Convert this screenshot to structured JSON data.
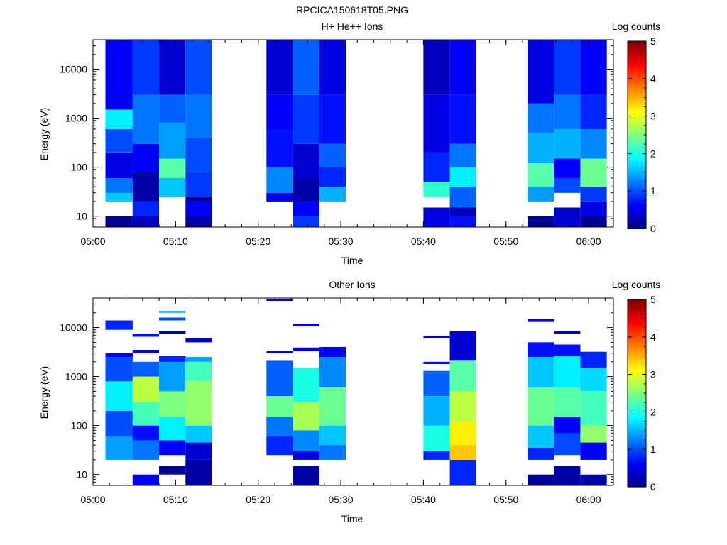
{
  "figure": {
    "title": "RPCICA150618T05.PNG"
  },
  "colorscale": [
    "#00007f",
    "#0000ff",
    "#007fff",
    "#00ffff",
    "#7fff7f",
    "#ffff00",
    "#ff7f00",
    "#ff0000",
    "#7f0000"
  ],
  "chart_data": [
    {
      "type": "heatmap",
      "title": "H+ He++ Ions",
      "xlabel": "Time",
      "ylabel": "Energy (eV)",
      "y_scale": "log",
      "ylim": [
        6,
        40000
      ],
      "xlim": [
        "05:00",
        "06:03"
      ],
      "x_ticks": [
        "05:00",
        "05:10",
        "05:20",
        "05:30",
        "05:40",
        "05:50",
        "06:00"
      ],
      "y_ticks": [
        "10",
        "100",
        "1000",
        "10000"
      ],
      "colorbar": {
        "label": "Log counts",
        "min": 0,
        "max": 5,
        "ticks": [
          "0",
          "1",
          "2",
          "3",
          "4",
          "5"
        ]
      },
      "columns": [
        {
          "start": "05:01.5",
          "end": "05:04.8",
          "bands": [
            [
              6,
              10,
              0.1
            ],
            [
              10,
              20,
              null
            ],
            [
              20,
              30,
              1.6
            ],
            [
              30,
              60,
              1.2
            ],
            [
              60,
              200,
              0.5
            ],
            [
              200,
              600,
              1.0
            ],
            [
              600,
              1500,
              1.8
            ],
            [
              1500,
              40000,
              0.6
            ]
          ]
        },
        {
          "start": "05:04.8",
          "end": "05:08.0",
          "bands": [
            [
              6,
              10,
              0.3
            ],
            [
              10,
              20,
              0.8
            ],
            [
              20,
              80,
              0.2
            ],
            [
              80,
              300,
              0.6
            ],
            [
              300,
              3000,
              1.2
            ],
            [
              3000,
              40000,
              0.9
            ]
          ]
        },
        {
          "start": "05:08.0",
          "end": "05:11.2",
          "bands": [
            [
              6,
              25,
              null
            ],
            [
              25,
              60,
              1.6
            ],
            [
              60,
              150,
              2.3
            ],
            [
              150,
              800,
              1.4
            ],
            [
              800,
              3000,
              1.1
            ],
            [
              3000,
              40000,
              0.4
            ]
          ]
        },
        {
          "start": "05:11.2",
          "end": "05:14.4",
          "bands": [
            [
              6,
              10,
              0.2
            ],
            [
              10,
              20,
              0.6
            ],
            [
              20,
              25,
              0.1
            ],
            [
              25,
              80,
              0.9
            ],
            [
              80,
              400,
              1.0
            ],
            [
              400,
              3000,
              1.2
            ],
            [
              3000,
              40000,
              1.0
            ]
          ]
        },
        {
          "start": "05:21.0",
          "end": "05:24.2",
          "bands": [
            [
              20,
              30,
              0.5
            ],
            [
              30,
              100,
              1.3
            ],
            [
              100,
              600,
              0.7
            ],
            [
              600,
              3000,
              0.6
            ],
            [
              3000,
              40000,
              0.4
            ]
          ]
        },
        {
          "start": "05:24.2",
          "end": "05:27.4",
          "bands": [
            [
              6,
              10,
              0.9
            ],
            [
              10,
              20,
              0.6
            ],
            [
              20,
              60,
              0.2
            ],
            [
              60,
              300,
              0.4
            ],
            [
              300,
              3000,
              0.9
            ],
            [
              3000,
              40000,
              1.1
            ]
          ]
        },
        {
          "start": "05:27.4",
          "end": "05:30.6",
          "bands": [
            [
              20,
              40,
              1.5
            ],
            [
              40,
              100,
              0.8
            ],
            [
              100,
              300,
              1.1
            ],
            [
              300,
              3000,
              0.7
            ],
            [
              3000,
              40000,
              0.5
            ]
          ]
        },
        {
          "start": "05:40.0",
          "end": "05:43.2",
          "bands": [
            [
              6,
              15,
              0.5
            ],
            [
              15,
              25,
              null
            ],
            [
              25,
              50,
              2.1
            ],
            [
              50,
              200,
              0.8
            ],
            [
              200,
              3000,
              0.5
            ],
            [
              3000,
              40000,
              0.3
            ]
          ]
        },
        {
          "start": "05:43.2",
          "end": "05:46.4",
          "bands": [
            [
              6,
              10,
              0.7
            ],
            [
              10,
              15,
              0.3
            ],
            [
              15,
              40,
              1.1
            ],
            [
              40,
              100,
              1.8
            ],
            [
              100,
              300,
              1.2
            ],
            [
              300,
              3000,
              0.7
            ],
            [
              3000,
              40000,
              0.6
            ]
          ]
        },
        {
          "start": "05:52.6",
          "end": "05:55.8",
          "bands": [
            [
              6,
              10,
              0.1
            ],
            [
              10,
              20,
              null
            ],
            [
              20,
              40,
              1.4
            ],
            [
              40,
              120,
              2.3
            ],
            [
              120,
              500,
              1.5
            ],
            [
              500,
              2000,
              1.2
            ],
            [
              2000,
              40000,
              0.5
            ]
          ]
        },
        {
          "start": "05:55.8",
          "end": "05:59.0",
          "bands": [
            [
              6,
              15,
              0.4
            ],
            [
              15,
              30,
              null
            ],
            [
              30,
              60,
              1.0
            ],
            [
              60,
              150,
              0.6
            ],
            [
              150,
              600,
              1.5
            ],
            [
              600,
              3000,
              1.2
            ],
            [
              3000,
              40000,
              0.9
            ]
          ]
        },
        {
          "start": "05:59.0",
          "end": "06:02.2",
          "bands": [
            [
              6,
              10,
              0.1
            ],
            [
              10,
              20,
              0.5
            ],
            [
              20,
              40,
              0.9
            ],
            [
              40,
              150,
              2.4
            ],
            [
              150,
              600,
              1.3
            ],
            [
              600,
              3000,
              0.8
            ],
            [
              3000,
              40000,
              0.6
            ]
          ]
        }
      ]
    },
    {
      "type": "heatmap",
      "title": "Other Ions",
      "xlabel": "Time",
      "ylabel": "Energy (eV)",
      "y_scale": "log",
      "ylim": [
        6,
        40000
      ],
      "xlim": [
        "05:00",
        "06:03"
      ],
      "x_ticks": [
        "05:00",
        "05:10",
        "05:20",
        "05:30",
        "05:40",
        "05:50",
        "06:00"
      ],
      "y_ticks": [
        "10",
        "100",
        "1000",
        "10000"
      ],
      "colorbar": {
        "label": "Log counts",
        "min": 0,
        "max": 5,
        "ticks": [
          "0",
          "1",
          "2",
          "3",
          "4",
          "5"
        ]
      },
      "columns": [
        {
          "start": "05:01.5",
          "end": "05:04.8",
          "bands": [
            [
              20,
              60,
              1.4
            ],
            [
              60,
              200,
              1.0
            ],
            [
              200,
              800,
              1.8
            ],
            [
              800,
              2500,
              1.0
            ],
            [
              2500,
              3000,
              0.6
            ],
            [
              3000,
              9000,
              null
            ],
            [
              9000,
              14000,
              0.8
            ]
          ]
        },
        {
          "start": "05:04.8",
          "end": "05:08.0",
          "bands": [
            [
              6,
              10,
              0.6
            ],
            [
              10,
              20,
              null
            ],
            [
              20,
              50,
              1.2
            ],
            [
              50,
              100,
              0.7
            ],
            [
              100,
              300,
              2.2
            ],
            [
              300,
              1000,
              2.8
            ],
            [
              1000,
              2000,
              1.1
            ],
            [
              3000,
              3500,
              0.6
            ],
            [
              6500,
              7500,
              0.7
            ]
          ]
        },
        {
          "start": "05:08.0",
          "end": "05:11.2",
          "bands": [
            [
              10,
              15,
              0.1
            ],
            [
              15,
              25,
              null
            ],
            [
              25,
              50,
              0.6
            ],
            [
              50,
              150,
              1.8
            ],
            [
              150,
              500,
              2.5
            ],
            [
              500,
              2000,
              1.4
            ],
            [
              2000,
              2600,
              0.8
            ],
            [
              7500,
              8500,
              0.3
            ],
            [
              14000,
              16000,
              1.0
            ],
            [
              20000,
              22000,
              1.6
            ]
          ]
        },
        {
          "start": "05:11.2",
          "end": "05:14.4",
          "bands": [
            [
              6,
              20,
              0.2
            ],
            [
              20,
              45,
              0.4
            ],
            [
              45,
              100,
              1.6
            ],
            [
              100,
              800,
              2.6
            ],
            [
              800,
              2000,
              2.2
            ],
            [
              2000,
              2500,
              1.4
            ],
            [
              5000,
              6000,
              0.4
            ]
          ]
        },
        {
          "start": "05:21.0",
          "end": "05:24.2",
          "bands": [
            [
              25,
              60,
              0.8
            ],
            [
              60,
              150,
              1.2
            ],
            [
              150,
              400,
              2.4
            ],
            [
              400,
              2100,
              1.1
            ],
            [
              3000,
              3300,
              0.5
            ],
            [
              35000,
              38000,
              0.6
            ]
          ]
        },
        {
          "start": "05:24.2",
          "end": "05:27.4",
          "bands": [
            [
              6,
              15,
              0.2
            ],
            [
              20,
              30,
              0.5
            ],
            [
              30,
              80,
              1.3
            ],
            [
              80,
              300,
              2.7
            ],
            [
              300,
              1500,
              2.0
            ],
            [
              3300,
              3900,
              0.5
            ],
            [
              10500,
              12000,
              0.6
            ]
          ]
        },
        {
          "start": "05:27.4",
          "end": "05:30.6",
          "bands": [
            [
              20,
              40,
              1.2
            ],
            [
              40,
              100,
              1.6
            ],
            [
              100,
              600,
              2.4
            ],
            [
              600,
              2500,
              1.3
            ],
            [
              2500,
              4000,
              0.6
            ]
          ]
        },
        {
          "start": "05:40.0",
          "end": "05:43.2",
          "bands": [
            [
              20,
              30,
              0.8
            ],
            [
              30,
              100,
              2.0
            ],
            [
              100,
              400,
              1.5
            ],
            [
              400,
              1300,
              1.1
            ],
            [
              1800,
              2000,
              0.7
            ],
            [
              6000,
              6800,
              0.4
            ]
          ]
        },
        {
          "start": "05:43.2",
          "end": "05:46.4",
          "bands": [
            [
              6,
              20,
              0.8
            ],
            [
              20,
              40,
              3.4
            ],
            [
              40,
              120,
              3.2
            ],
            [
              120,
              500,
              2.8
            ],
            [
              500,
              2100,
              2.3
            ],
            [
              2100,
              8500,
              0.4
            ]
          ]
        },
        {
          "start": "05:52.6",
          "end": "05:55.8",
          "bands": [
            [
              6,
              10,
              0.1
            ],
            [
              10,
              20,
              null
            ],
            [
              20,
              35,
              0.8
            ],
            [
              35,
              100,
              1.6
            ],
            [
              100,
              600,
              2.4
            ],
            [
              600,
              2500,
              1.6
            ],
            [
              2500,
              5000,
              0.7
            ],
            [
              13000,
              15000,
              0.6
            ]
          ]
        },
        {
          "start": "05:55.8",
          "end": "05:59.0",
          "bands": [
            [
              6,
              15,
              0.2
            ],
            [
              15,
              25,
              null
            ],
            [
              25,
              70,
              1.0
            ],
            [
              70,
              150,
              0.6
            ],
            [
              150,
              600,
              2.3
            ],
            [
              600,
              2600,
              1.8
            ],
            [
              2600,
              4500,
              0.7
            ],
            [
              7500,
              8500,
              0.4
            ]
          ]
        },
        {
          "start": "05:59.0",
          "end": "06:02.2",
          "bands": [
            [
              6,
              10,
              0.2
            ],
            [
              10,
              20,
              null
            ],
            [
              20,
              45,
              0.6
            ],
            [
              45,
              100,
              2.6
            ],
            [
              100,
              500,
              2.2
            ],
            [
              500,
              1500,
              1.7
            ],
            [
              1500,
              3200,
              0.8
            ]
          ]
        }
      ]
    }
  ]
}
